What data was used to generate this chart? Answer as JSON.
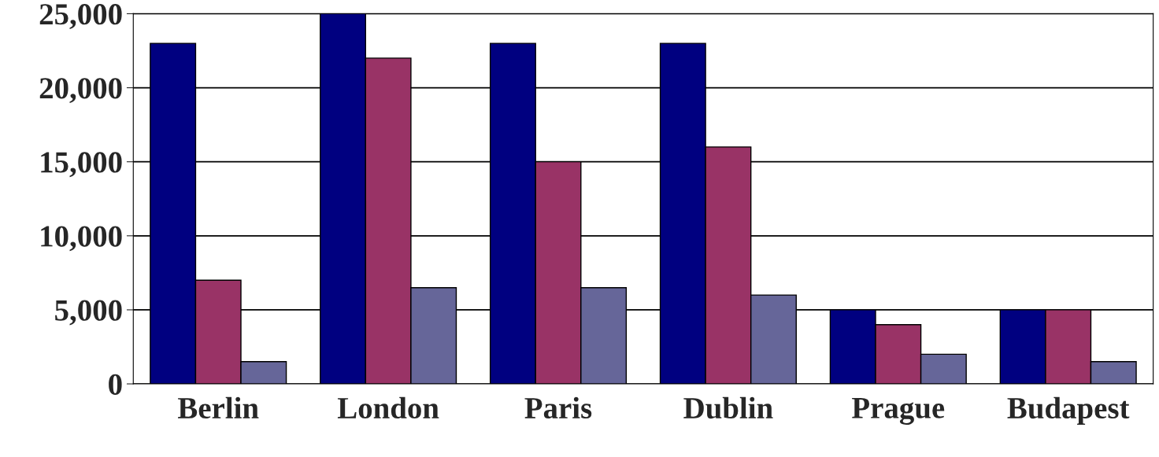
{
  "chart_data": {
    "type": "bar",
    "categories": [
      "Berlin",
      "London",
      "Paris",
      "Dublin",
      "Prague",
      "Budapest"
    ],
    "series": [
      {
        "color": "#000080",
        "values": [
          23000,
          25000,
          23000,
          23000,
          5000,
          5000
        ]
      },
      {
        "color": "#993366",
        "values": [
          7000,
          22000,
          15000,
          16000,
          4000,
          5000
        ]
      },
      {
        "color": "#666699",
        "values": [
          1500,
          6500,
          6500,
          6000,
          2000,
          1500
        ]
      }
    ],
    "ylim": [
      0,
      25000
    ],
    "yticks": [
      {
        "value": 0,
        "label": "0"
      },
      {
        "value": 5000,
        "label": "5,000"
      },
      {
        "value": 10000,
        "label": "10,000"
      },
      {
        "value": 15000,
        "label": "15,000"
      },
      {
        "value": 20000,
        "label": "20,000"
      },
      {
        "value": 25000,
        "label": "25,000"
      }
    ],
    "grid": "y"
  }
}
